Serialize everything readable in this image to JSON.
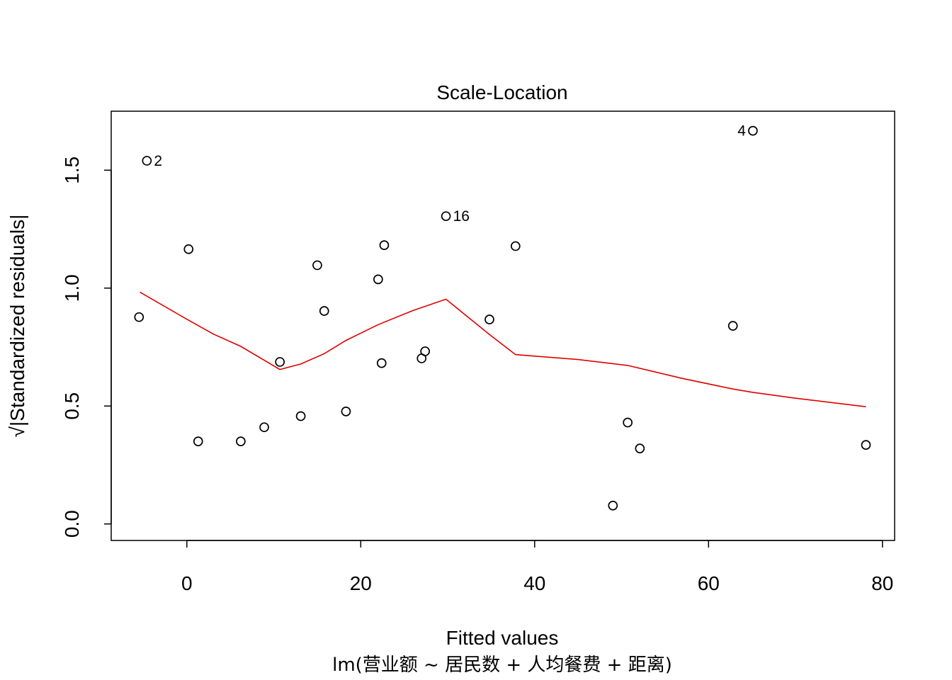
{
  "chart_data": {
    "type": "scatter",
    "title": "Scale-Location",
    "xlabel": "Fitted values",
    "ylabel": "√|Standardized residuals|",
    "subtitle": "lm(营业额 ~ 居民数 + 人均餐费 + 距离)",
    "xlim": [
      -8.7,
      81.4
    ],
    "ylim": [
      -0.07,
      1.75
    ],
    "xticks": [
      0,
      20,
      40,
      60,
      80
    ],
    "yticks": [
      0.0,
      0.5,
      1.0,
      1.5
    ],
    "xtick_labels": [
      "0",
      "20",
      "40",
      "60",
      "80"
    ],
    "ytick_labels": [
      "0.0",
      "0.5",
      "1.0",
      "1.5"
    ],
    "grid": false,
    "point_color": "#000000",
    "smooth_color": "#e00000",
    "points": [
      {
        "x": -5.5,
        "y": 0.877
      },
      {
        "x": -4.6,
        "y": 1.54,
        "label": "2"
      },
      {
        "x": 0.2,
        "y": 1.165
      },
      {
        "x": 1.3,
        "y": 0.35
      },
      {
        "x": 6.2,
        "y": 0.35
      },
      {
        "x": 8.9,
        "y": 0.41
      },
      {
        "x": 10.7,
        "y": 0.687
      },
      {
        "x": 13.1,
        "y": 0.457
      },
      {
        "x": 15.0,
        "y": 1.097
      },
      {
        "x": 15.8,
        "y": 0.903
      },
      {
        "x": 18.3,
        "y": 0.477
      },
      {
        "x": 22.0,
        "y": 1.037
      },
      {
        "x": 22.4,
        "y": 0.682
      },
      {
        "x": 22.7,
        "y": 1.182
      },
      {
        "x": 27.0,
        "y": 0.702
      },
      {
        "x": 27.4,
        "y": 0.732
      },
      {
        "x": 29.8,
        "y": 1.305,
        "label": "16"
      },
      {
        "x": 34.8,
        "y": 0.867
      },
      {
        "x": 37.8,
        "y": 1.178
      },
      {
        "x": 49.0,
        "y": 0.078
      },
      {
        "x": 50.7,
        "y": 0.43
      },
      {
        "x": 52.1,
        "y": 0.32
      },
      {
        "x": 62.8,
        "y": 0.84
      },
      {
        "x": 65.1,
        "y": 1.667,
        "label": "4"
      },
      {
        "x": 78.1,
        "y": 0.335
      }
    ],
    "smooth_line": [
      [
        -5.4,
        0.983
      ],
      [
        0.0,
        0.868
      ],
      [
        3.0,
        0.806
      ],
      [
        6.2,
        0.753
      ],
      [
        10.7,
        0.655
      ],
      [
        13.1,
        0.678
      ],
      [
        15.8,
        0.722
      ],
      [
        18.3,
        0.778
      ],
      [
        22.0,
        0.845
      ],
      [
        26.0,
        0.905
      ],
      [
        29.8,
        0.953
      ],
      [
        34.8,
        0.803
      ],
      [
        37.8,
        0.718
      ],
      [
        45.0,
        0.697
      ],
      [
        50.7,
        0.672
      ],
      [
        57.0,
        0.617
      ],
      [
        62.8,
        0.572
      ],
      [
        65.1,
        0.558
      ],
      [
        70.0,
        0.533
      ],
      [
        78.1,
        0.497
      ]
    ]
  }
}
